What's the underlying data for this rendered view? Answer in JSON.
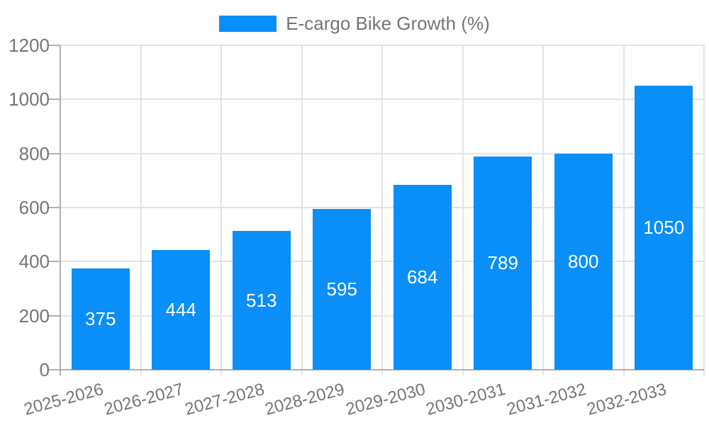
{
  "chart_data": {
    "type": "bar",
    "title": "E-cargo Bike Growth (%)",
    "legend": {
      "position": "top",
      "label": "E-cargo Bike Growth (%)"
    },
    "categories": [
      "2025-2026",
      "2026-2027",
      "2027-2028",
      "2028-2029",
      "2029-2030",
      "2030-2031",
      "2031-2032",
      "2032-2033"
    ],
    "values": [
      375,
      444,
      513,
      595,
      684,
      789,
      800,
      1050
    ],
    "bar_value_labels": [
      "375",
      "444",
      "513",
      "595",
      "684",
      "789",
      "800",
      "1050"
    ],
    "xlabel": "",
    "ylabel": "",
    "ylim": [
      0,
      1200
    ],
    "yticks": [
      0,
      200,
      400,
      600,
      800,
      1000,
      1200
    ],
    "grid": true,
    "x_tick_rotation_deg": -15,
    "colors": {
      "bar": "#0a8ef8",
      "bar_label_text": "#ffffff",
      "grid_line": "#e3e3e3",
      "axis_line": "#b0b0b0",
      "tick_text": "#757575",
      "background": "#ffffff"
    }
  }
}
